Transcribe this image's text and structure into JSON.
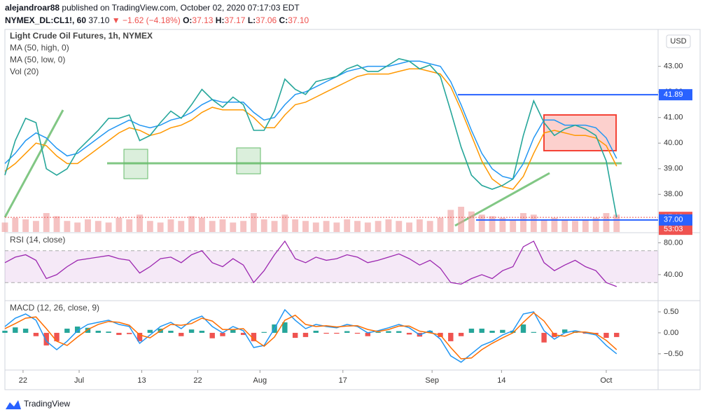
{
  "header": {
    "author": "alejandroar88",
    "published": "published on TradingView.com, October 02, 2020 07:17:03 EDT",
    "symbol": "NYMEX_DL:CL1!, 60",
    "last": "37.10",
    "arrow": "▼",
    "change": "−1.62 (−4.18%)",
    "ohlc": [
      {
        "key": "O:",
        "value": "37.13"
      },
      {
        "key": "H:",
        "value": "37.17"
      },
      {
        "key": "L:",
        "value": "37.06"
      },
      {
        "key": "C:",
        "value": "37.10"
      }
    ]
  },
  "currency": "USD",
  "footer": "TradingView",
  "x_axis": {
    "x": [
      0,
      1,
      2,
      3,
      4,
      5,
      6,
      7,
      8,
      9,
      10,
      11,
      12,
      13,
      14,
      15,
      16,
      17,
      18,
      19,
      20,
      21,
      22,
      23,
      24,
      25,
      26,
      27,
      28,
      29,
      30,
      31,
      32,
      33,
      34,
      35,
      36,
      37,
      38,
      39,
      40,
      41,
      42,
      43,
      44,
      45,
      46,
      47,
      48,
      49,
      50,
      51,
      52,
      53,
      54,
      55,
      56,
      57,
      58,
      59
    ],
    "xlim": [
      0,
      63
    ],
    "xticks": [
      {
        "value": 1.75,
        "label": "22"
      },
      {
        "value": 7.16,
        "label": "Jul"
      },
      {
        "value": 13.2,
        "label": "13"
      },
      {
        "value": 18.6,
        "label": "22"
      },
      {
        "value": 24.6,
        "label": "Aug"
      },
      {
        "value": 32.6,
        "label": "17"
      },
      {
        "value": 41.2,
        "label": "Sep"
      },
      {
        "value": 47.9,
        "label": "14"
      },
      {
        "value": 58.0,
        "label": "Oct"
      }
    ]
  },
  "chart_data": [
    {
      "type": "line",
      "title": "Light Crude Oil Futures, 1h, NYMEX",
      "color": "#26a69a",
      "values": [
        38.75,
        40.1,
        40.97,
        40.8,
        39.0,
        38.75,
        39.0,
        39.7,
        40.1,
        40.5,
        40.97,
        40.97,
        41.1,
        40.1,
        40.3,
        40.8,
        41.25,
        40.97,
        41.5,
        42.1,
        41.7,
        41.4,
        41.8,
        41.5,
        40.5,
        40.5,
        41.25,
        42.5,
        42.1,
        41.9,
        42.4,
        42.5,
        42.6,
        42.9,
        43.05,
        42.8,
        42.8,
        43.05,
        43.3,
        43.2,
        42.9,
        43.05,
        42.6,
        41.25,
        39.85,
        38.75,
        38.35,
        38.2,
        38.35,
        38.6,
        40.3,
        41.65,
        40.8,
        40.3,
        40.55,
        40.7,
        40.55,
        40.3,
        39.3,
        37.1
      ],
      "series": [
        {
          "name": "MA (50, high, 0)",
          "color": "#2196f3",
          "values": [
            39.2,
            39.6,
            40.1,
            40.4,
            40.2,
            39.8,
            39.5,
            39.6,
            39.9,
            40.2,
            40.5,
            40.7,
            40.9,
            40.7,
            40.6,
            40.7,
            40.9,
            41.0,
            41.2,
            41.5,
            41.7,
            41.6,
            41.6,
            41.6,
            41.2,
            40.9,
            41.0,
            41.5,
            41.9,
            42.0,
            42.2,
            42.4,
            42.6,
            42.8,
            42.9,
            43.0,
            43.0,
            43.0,
            43.1,
            43.2,
            43.2,
            43.1,
            43.0,
            42.4,
            41.5,
            40.5,
            39.6,
            39.0,
            38.7,
            38.6,
            39.2,
            40.2,
            40.9,
            40.9,
            40.7,
            40.7,
            40.7,
            40.6,
            40.2,
            39.4
          ]
        },
        {
          "name": "MA (50, low, 0)",
          "color": "#ff9800",
          "values": [
            38.9,
            39.2,
            39.6,
            40.0,
            39.9,
            39.5,
            39.2,
            39.2,
            39.5,
            39.8,
            40.1,
            40.4,
            40.6,
            40.5,
            40.3,
            40.4,
            40.6,
            40.7,
            40.9,
            41.2,
            41.4,
            41.3,
            41.3,
            41.3,
            41.0,
            40.6,
            40.6,
            41.1,
            41.5,
            41.6,
            41.8,
            42.0,
            42.2,
            42.4,
            42.6,
            42.7,
            42.7,
            42.7,
            42.8,
            42.9,
            42.9,
            42.8,
            42.7,
            42.2,
            41.3,
            40.3,
            39.3,
            38.6,
            38.3,
            38.2,
            38.7,
            39.6,
            40.4,
            40.5,
            40.4,
            40.3,
            40.3,
            40.2,
            39.9,
            39.1
          ]
        }
      ],
      "volume": {
        "name": "Vol (20)",
        "color": "#ef9a9a",
        "vlim": [
          0,
          100
        ],
        "values": [
          30,
          45,
          40,
          35,
          60,
          50,
          35,
          30,
          40,
          35,
          30,
          45,
          40,
          55,
          35,
          30,
          40,
          35,
          50,
          45,
          35,
          40,
          30,
          35,
          60,
          40,
          35,
          55,
          40,
          35,
          30,
          35,
          30,
          40,
          35,
          30,
          35,
          40,
          35,
          30,
          40,
          35,
          45,
          70,
          80,
          65,
          55,
          50,
          45,
          40,
          60,
          55,
          40,
          45,
          40,
          35,
          40,
          45,
          60,
          55
        ]
      },
      "ylim": [
        36.53,
        44.44
      ],
      "yticks": [
        {
          "value": 43,
          "label": "43.00"
        },
        {
          "value": 42,
          "label": "42.00"
        },
        {
          "value": 41,
          "label": "41.00"
        },
        {
          "value": 40,
          "label": "40.00"
        },
        {
          "value": 39,
          "label": "39.00"
        },
        {
          "value": 38,
          "label": "38.00"
        }
      ],
      "levels": [
        41.89,
        {
          "value": 37.1,
          "label": "37.10"
        },
        {
          "value": 37,
          "label": "37.00"
        }
      ],
      "level_colors": [
        "#2962ff",
        "#ef5350",
        "#2962ff"
      ],
      "countdown": "53:03"
    },
    {
      "type": "line",
      "title": "RSI (14, close)",
      "color": "#9c27b0",
      "values": [
        55,
        62,
        65,
        58,
        35,
        40,
        50,
        58,
        60,
        62,
        64,
        60,
        58,
        42,
        50,
        60,
        62,
        55,
        65,
        70,
        55,
        50,
        60,
        52,
        30,
        45,
        65,
        82,
        60,
        55,
        62,
        58,
        60,
        65,
        62,
        55,
        58,
        62,
        66,
        60,
        52,
        58,
        48,
        30,
        28,
        35,
        40,
        35,
        45,
        50,
        75,
        82,
        55,
        45,
        52,
        58,
        50,
        45,
        30,
        25
      ],
      "band": [
        30,
        70
      ],
      "ylim": [
        8.2,
        91.8
      ],
      "yticks": [
        {
          "value": 80,
          "label": "80.00"
        },
        {
          "value": 40,
          "label": "40.00"
        }
      ]
    },
    {
      "type": "line",
      "title": "MACD (12, 26, close, 9)",
      "series": [
        {
          "color": "#2196f3",
          "values": [
            0.15,
            0.35,
            0.45,
            0.3,
            -0.2,
            -0.4,
            -0.2,
            0.05,
            0.2,
            0.25,
            0.3,
            0.2,
            0.15,
            -0.25,
            -0.05,
            0.15,
            0.25,
            0.1,
            0.3,
            0.4,
            0.15,
            0.0,
            0.15,
            0.05,
            -0.35,
            -0.3,
            0.1,
            0.55,
            0.3,
            0.1,
            0.2,
            0.15,
            0.12,
            0.2,
            0.15,
            0.0,
            0.05,
            0.12,
            0.2,
            0.12,
            -0.05,
            0.05,
            -0.15,
            -0.55,
            -0.7,
            -0.5,
            -0.3,
            -0.2,
            -0.05,
            0.05,
            0.45,
            0.5,
            0.05,
            -0.15,
            0.0,
            0.05,
            0.0,
            -0.05,
            -0.3,
            -0.5
          ]
        },
        {
          "color": "#ff6d00",
          "values": [
            0.1,
            0.22,
            0.35,
            0.38,
            0.1,
            -0.2,
            -0.3,
            -0.1,
            0.08,
            0.2,
            0.27,
            0.25,
            0.18,
            -0.05,
            -0.12,
            0.05,
            0.2,
            0.18,
            0.22,
            0.35,
            0.28,
            0.08,
            0.08,
            0.1,
            -0.15,
            -0.32,
            -0.1,
            0.3,
            0.42,
            0.2,
            0.15,
            0.17,
            0.14,
            0.16,
            0.17,
            0.08,
            0.03,
            0.08,
            0.16,
            0.16,
            0.04,
            0.0,
            -0.05,
            -0.35,
            -0.62,
            -0.6,
            -0.4,
            -0.25,
            -0.12,
            0.0,
            0.25,
            0.48,
            0.28,
            -0.05,
            -0.08,
            0.02,
            0.02,
            -0.02,
            -0.18,
            -0.4
          ]
        }
      ],
      "histogram": {
        "colors": [
          "#26a69a",
          "#ef5350"
        ],
        "values": [
          0.05,
          0.13,
          0.1,
          -0.08,
          -0.3,
          -0.2,
          0.1,
          0.15,
          0.12,
          0.05,
          0.03,
          -0.05,
          -0.03,
          -0.2,
          0.07,
          0.1,
          0.05,
          -0.08,
          0.08,
          0.05,
          -0.13,
          -0.08,
          0.07,
          -0.05,
          -0.2,
          0.02,
          0.2,
          0.25,
          -0.12,
          -0.1,
          0.05,
          -0.02,
          -0.02,
          0.04,
          -0.02,
          -0.08,
          0.02,
          0.04,
          0.04,
          -0.04,
          -0.09,
          0.05,
          -0.1,
          -0.2,
          -0.08,
          0.1,
          0.1,
          0.05,
          0.07,
          0.05,
          0.2,
          0.02,
          -0.23,
          -0.1,
          0.08,
          0.03,
          -0.02,
          -0.03,
          -0.12,
          -0.1
        ]
      },
      "ylim": [
        -0.87,
        0.75
      ],
      "yticks": [
        {
          "value": 0.5,
          "label": "0.50"
        },
        {
          "value": 0,
          "label": "0.00"
        },
        {
          "value": -0.5,
          "label": "−0.50"
        }
      ]
    }
  ]
}
